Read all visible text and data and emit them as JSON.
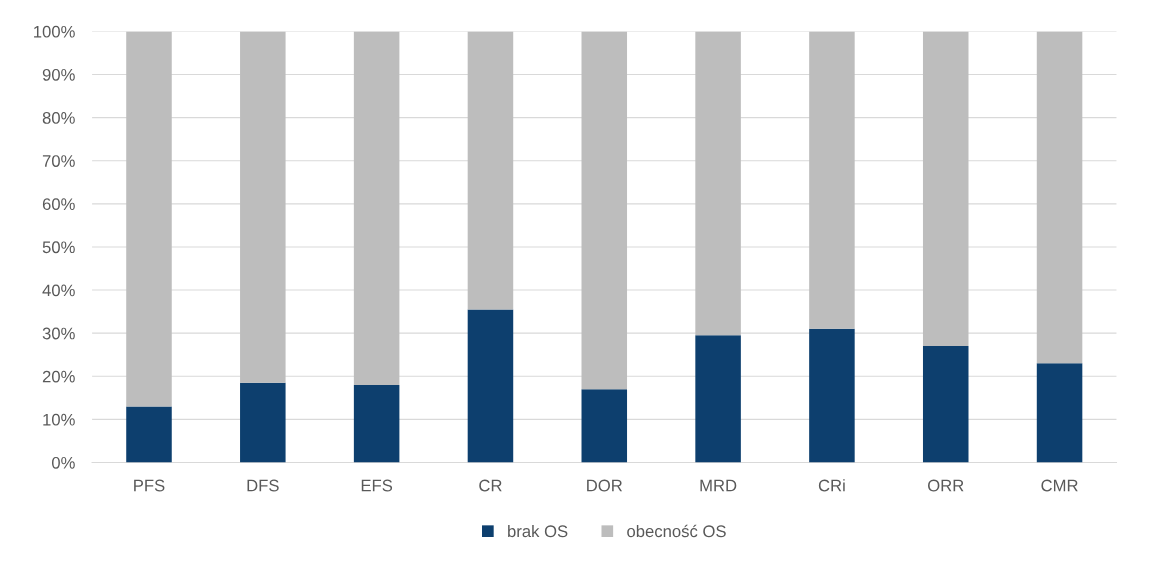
{
  "chart_data": {
    "type": "bar",
    "stacked": true,
    "categories": [
      "PFS",
      "DFS",
      "EFS",
      "CR",
      "DOR",
      "MRD",
      "CRi",
      "ORR",
      "CMR"
    ],
    "series": [
      {
        "name": "brak OS",
        "color": "#0d3f6e",
        "values": [
          13,
          18.5,
          18,
          35.5,
          17,
          29.5,
          31,
          27,
          23
        ]
      },
      {
        "name": "obecność OS",
        "color": "#bdbdbd",
        "values": [
          87,
          81.5,
          82,
          64.5,
          83,
          70.5,
          69,
          73,
          77
        ]
      }
    ],
    "ylim": [
      0,
      100
    ],
    "yticks": [
      {
        "value": 0,
        "label": "0%"
      },
      {
        "value": 10,
        "label": "10%"
      },
      {
        "value": 20,
        "label": "20%"
      },
      {
        "value": 30,
        "label": "30%"
      },
      {
        "value": 40,
        "label": "40%"
      },
      {
        "value": 50,
        "label": "50%"
      },
      {
        "value": 60,
        "label": "60%"
      },
      {
        "value": 70,
        "label": "70%"
      },
      {
        "value": 80,
        "label": "80%"
      },
      {
        "value": 90,
        "label": "90%"
      },
      {
        "value": 100,
        "label": "100%"
      }
    ],
    "grid": "y",
    "legend": "bottom"
  }
}
